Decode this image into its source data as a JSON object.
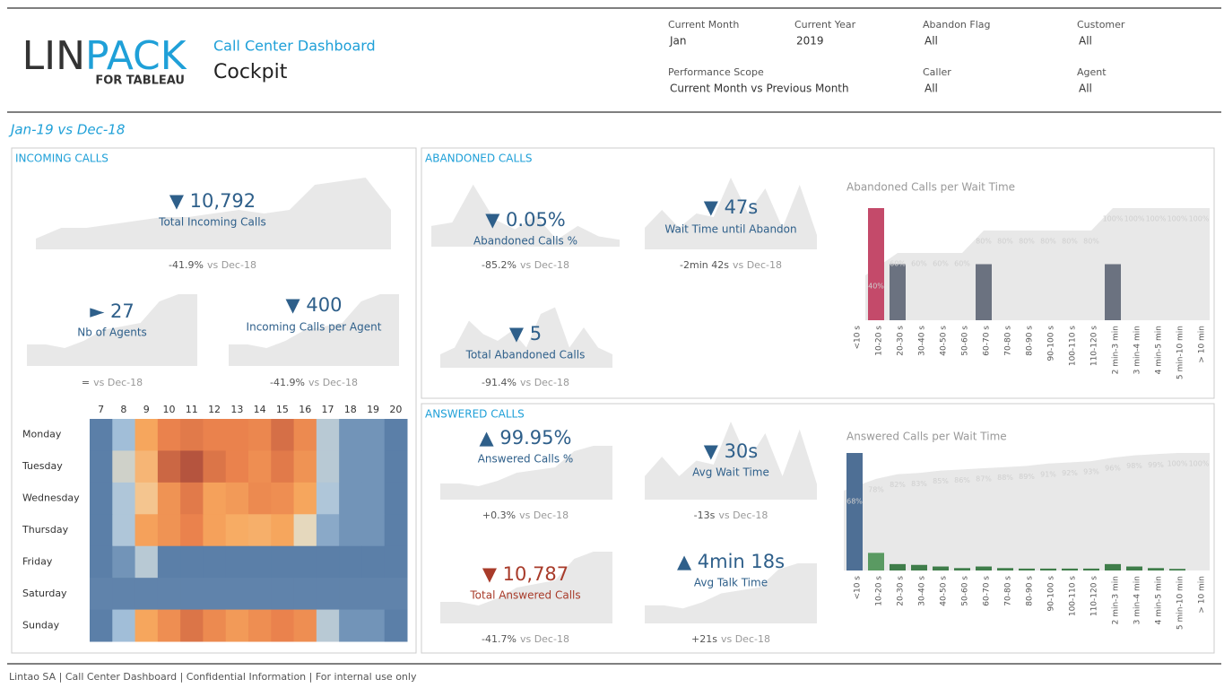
{
  "header": {
    "logo_lin": "LIN",
    "logo_pack": "PACK",
    "logo_sub": "FOR TABLEAU",
    "subtitle": "Call Center Dashboard",
    "title": "Cockpit"
  },
  "filters": [
    {
      "label": "Current Month",
      "value": "Jan"
    },
    {
      "label": "Current Year",
      "value": "2019"
    },
    {
      "label": "Abandon Flag",
      "value": "All"
    },
    {
      "label": "Customer",
      "value": "All"
    },
    {
      "label": "Performance Scope",
      "value": "Current Month vs Previous Month"
    },
    {
      "label": "Caller",
      "value": "All"
    },
    {
      "label": "Agent",
      "value": "All"
    }
  ],
  "period": "Jan-19 vs Dec-18",
  "incoming": {
    "title": "INCOMING CALLS",
    "kpis": [
      {
        "value": "▼ 10,792",
        "label": "Total Incoming Calls",
        "delta": "-41.9%",
        "compare": "vs Dec-18",
        "color": "#2e5f8a"
      },
      {
        "value": "► 27",
        "label": "Nb of Agents",
        "delta": "=",
        "compare": "vs Dec-18",
        "color": "#2e5f8a"
      },
      {
        "value": "▼ 400",
        "label": "Incoming Calls per Agent",
        "delta": "-41.9%",
        "compare": "vs Dec-18",
        "color": "#2e5f8a"
      }
    ],
    "heatmap": {
      "columns": [
        7,
        8,
        9,
        10,
        11,
        12,
        13,
        14,
        15,
        16,
        17,
        18,
        19,
        20
      ],
      "rows": [
        "Monday",
        "Tuesday",
        "Wednesday",
        "Thursday",
        "Friday",
        "Saturday",
        "Sunday"
      ],
      "values": [
        [
          10,
          25,
          60,
          75,
          78,
          75,
          75,
          73,
          82,
          72,
          30,
          15,
          15,
          10
        ],
        [
          10,
          35,
          55,
          85,
          92,
          80,
          75,
          70,
          78,
          68,
          30,
          15,
          15,
          10
        ],
        [
          10,
          28,
          50,
          68,
          78,
          62,
          65,
          72,
          70,
          60,
          28,
          15,
          15,
          10
        ],
        [
          10,
          28,
          62,
          68,
          75,
          62,
          58,
          57,
          60,
          40,
          20,
          15,
          15,
          10
        ],
        [
          10,
          15,
          30,
          10,
          10,
          10,
          10,
          10,
          10,
          10,
          10,
          10,
          10,
          10
        ],
        [
          11,
          11,
          11,
          11,
          11,
          11,
          11,
          11,
          11,
          11,
          11,
          11,
          11,
          11
        ],
        [
          10,
          25,
          60,
          70,
          80,
          72,
          65,
          70,
          75,
          70,
          30,
          15,
          15,
          10
        ]
      ],
      "color_scale": [
        "#5b7fa8",
        "#a8c4dd",
        "#f2dcb6",
        "#f7a85e",
        "#e9814c",
        "#b5543e"
      ]
    }
  },
  "abandoned": {
    "title": "ABANDONED CALLS",
    "kpis": [
      {
        "value": "▼ 0.05%",
        "label": "Abandoned Calls %",
        "delta": "-85.2%",
        "compare": "vs Dec-18",
        "color": "#2e5f8a"
      },
      {
        "value": "▼ 47s",
        "label": "Wait Time until Abandon",
        "delta": "-2min 42s",
        "compare": "vs Dec-18",
        "color": "#2e5f8a"
      },
      {
        "value": "▼ 5",
        "label": "Total Abandoned Calls",
        "delta": "-91.4%",
        "compare": "vs Dec-18",
        "color": "#2e5f8a"
      }
    ],
    "chart": {
      "type": "bar",
      "title": "Abandoned Calls per Wait Time",
      "categories": [
        "<10 s",
        "10-20 s",
        "20-30 s",
        "30-40 s",
        "40-50 s",
        "50-60 s",
        "60-70 s",
        "70-80 s",
        "80-90 s",
        "90-100 s",
        "100-110 s",
        "110-120 s",
        "2 min-3 min",
        "3 min-4 min",
        "4 min-5 min",
        "5 min-10 min",
        "> 10 min"
      ],
      "values": [
        0,
        2,
        1,
        0,
        0,
        0,
        1,
        0,
        0,
        0,
        0,
        0,
        1,
        0,
        0,
        0,
        0
      ],
      "colors": [
        "#6b7280",
        "#c44a6a",
        "#6b7280",
        "#6b7280",
        "#6b7280",
        "#6b7280",
        "#6b7280",
        "#6b7280",
        "#6b7280",
        "#6b7280",
        "#6b7280",
        "#6b7280",
        "#6b7280",
        "#6b7280",
        "#6b7280",
        "#6b7280",
        "#6b7280"
      ],
      "cumulative": [
        null,
        40,
        60,
        60,
        60,
        60,
        80,
        80,
        80,
        80,
        80,
        80,
        100,
        100,
        100,
        100,
        100
      ],
      "cumulative_labels": [
        null,
        "40%",
        "60%",
        "60%",
        "60%",
        "60%",
        "80%",
        "80%",
        "80%",
        "80%",
        "80%",
        "80%",
        "100%",
        "100%",
        "100%",
        "100%",
        "100%"
      ]
    }
  },
  "answered": {
    "title": "ANSWERED CALLS",
    "kpis": [
      {
        "value": "▲ 99.95%",
        "label": "Answered Calls %",
        "delta": "+0.3%",
        "compare": "vs Dec-18",
        "color": "#2e5f8a"
      },
      {
        "value": "▼ 30s",
        "label": "Avg Wait Time",
        "delta": "-13s",
        "compare": "vs Dec-18",
        "color": "#2e5f8a"
      },
      {
        "value": "▼ 10,787",
        "label": "Total Answered Calls",
        "delta": "-41.7%",
        "compare": "vs Dec-18",
        "color": "#a83b2a"
      },
      {
        "value": "▲ 4min 18s",
        "label": "Avg Talk Time",
        "delta": "+21s",
        "compare": "vs Dec-18",
        "color": "#2e5f8a"
      }
    ],
    "chart": {
      "type": "bar",
      "title": "Answered Calls per Wait Time",
      "categories": [
        "<10 s",
        "10-20 s",
        "20-30 s",
        "30-40 s",
        "40-50 s",
        "50-60 s",
        "60-70 s",
        "70-80 s",
        "80-90 s",
        "90-100 s",
        "100-110 s",
        "110-120 s",
        "2 min-3 min",
        "3 min-4 min",
        "4 min-5 min",
        "5 min-10 min",
        "> 10 min"
      ],
      "values": [
        7335,
        1100,
        400,
        350,
        250,
        150,
        250,
        150,
        120,
        120,
        120,
        120,
        400,
        250,
        150,
        100,
        0
      ],
      "colors": [
        "#4e6f95",
        "#5a9a62",
        "#3f7d4a",
        "#3f7d4a",
        "#3f7d4a",
        "#3f7d4a",
        "#3f7d4a",
        "#3f7d4a",
        "#3f7d4a",
        "#3f7d4a",
        "#3f7d4a",
        "#3f7d4a",
        "#3f7d4a",
        "#3f7d4a",
        "#3f7d4a",
        "#3f7d4a",
        "#3f7d4a"
      ],
      "cumulative": [
        68,
        78,
        82,
        83,
        85,
        86,
        87,
        88,
        89,
        91,
        92,
        93,
        96,
        98,
        99,
        100,
        100
      ],
      "cumulative_labels": [
        "68%",
        "78%",
        "82%",
        "83%",
        "85%",
        "86%",
        "87%",
        "88%",
        "89%",
        "91%",
        "92%",
        "93%",
        "96%",
        "98%",
        "99%",
        "100%",
        "100%"
      ]
    }
  },
  "footer": "Lintao SA | Call Center Dashboard | Confidential Information | For internal use only"
}
